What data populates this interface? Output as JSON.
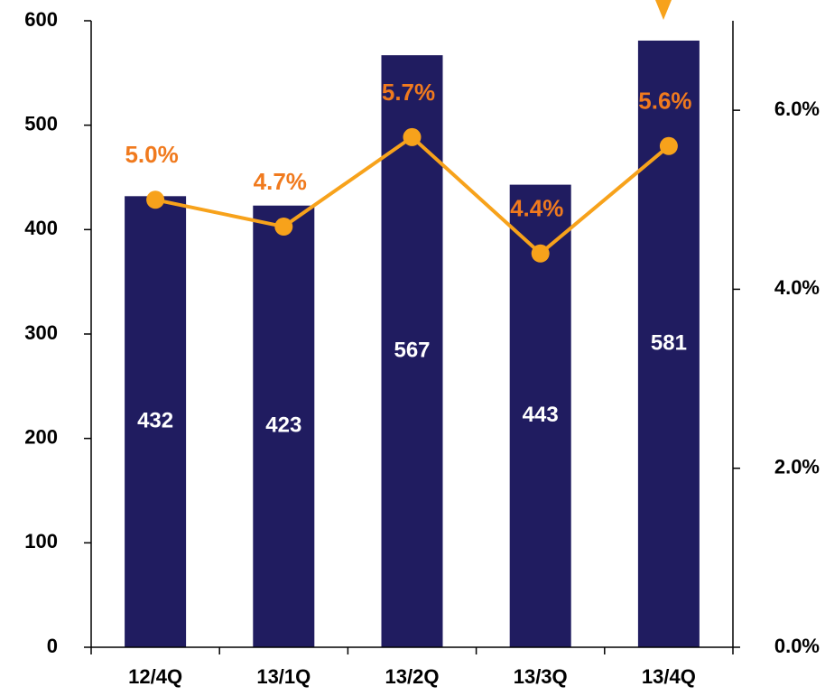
{
  "chart_data": {
    "type": "bar_line",
    "categories": [
      "12/4Q",
      "13/1Q",
      "13/2Q",
      "13/3Q",
      "13/4Q"
    ],
    "series": [
      {
        "type": "bar",
        "color": "#201c60",
        "values": [
          432,
          423,
          567,
          443,
          581
        ]
      },
      {
        "type": "line",
        "axis": "y2",
        "color": "#f7a21b",
        "label_color": "#f07a1e",
        "values": [
          5.0,
          4.7,
          5.7,
          4.4,
          5.6
        ],
        "value_labels": [
          "5.0%",
          "4.7%",
          "5.7%",
          "4.4%",
          "5.6%"
        ]
      }
    ],
    "ylim": [
      0,
      600
    ],
    "yticks": [
      0,
      100,
      200,
      300,
      400,
      500,
      600
    ],
    "y2lim": [
      0,
      7
    ],
    "y2ticks": [
      {
        "value": 0,
        "label": "0.0%"
      },
      {
        "value": 2,
        "label": "2.0%"
      },
      {
        "value": 4,
        "label": "4.0%"
      },
      {
        "value": 6,
        "label": "6.0%"
      }
    ]
  }
}
